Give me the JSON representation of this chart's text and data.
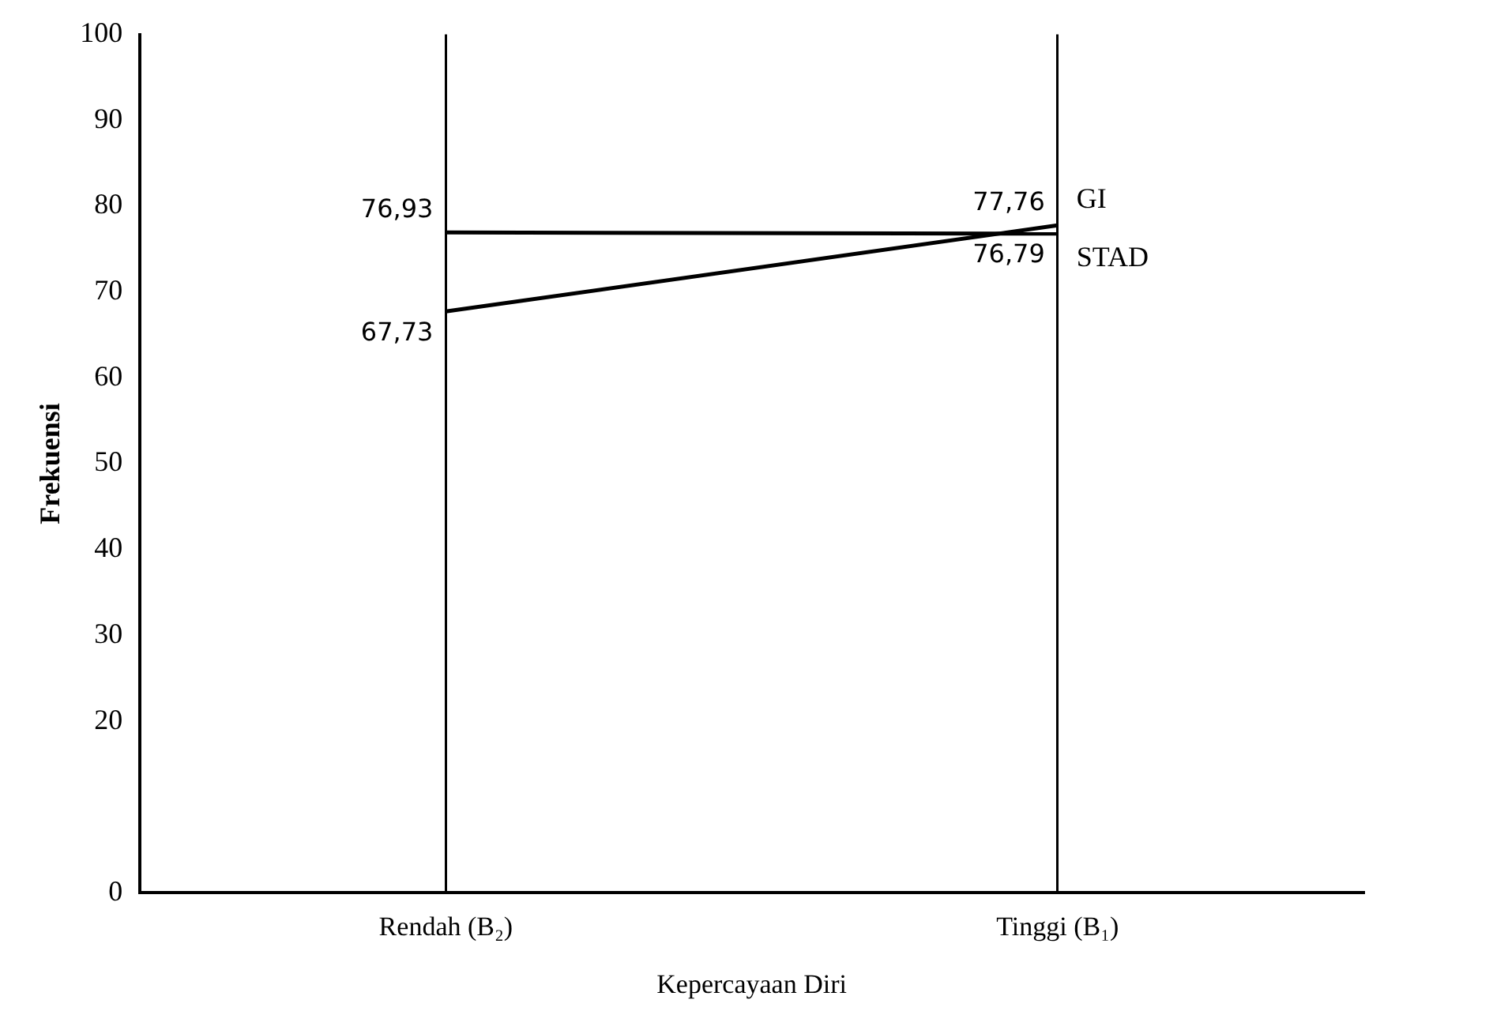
{
  "chart_data": {
    "type": "line",
    "ylabel": "Frekuensi",
    "xlabel": "Kepercayaan Diri",
    "categories": [
      "Rendah (B₂)",
      "Tinggi (B₁)"
    ],
    "series": [
      {
        "name": "GI",
        "color": "#000000",
        "values": [
          67.73,
          77.76
        ],
        "value_labels": [
          "67,73",
          "77,76"
        ]
      },
      {
        "name": "STAD",
        "color": "#000000",
        "values": [
          76.93,
          76.79
        ],
        "value_labels": [
          "76,93",
          "76,79"
        ]
      }
    ],
    "ylim": [
      0,
      100
    ],
    "yticks": [
      0,
      20,
      30,
      40,
      50,
      60,
      70,
      80,
      90,
      100
    ],
    "grid": "x",
    "legend": false,
    "marker": "none",
    "line_style": "solid"
  }
}
